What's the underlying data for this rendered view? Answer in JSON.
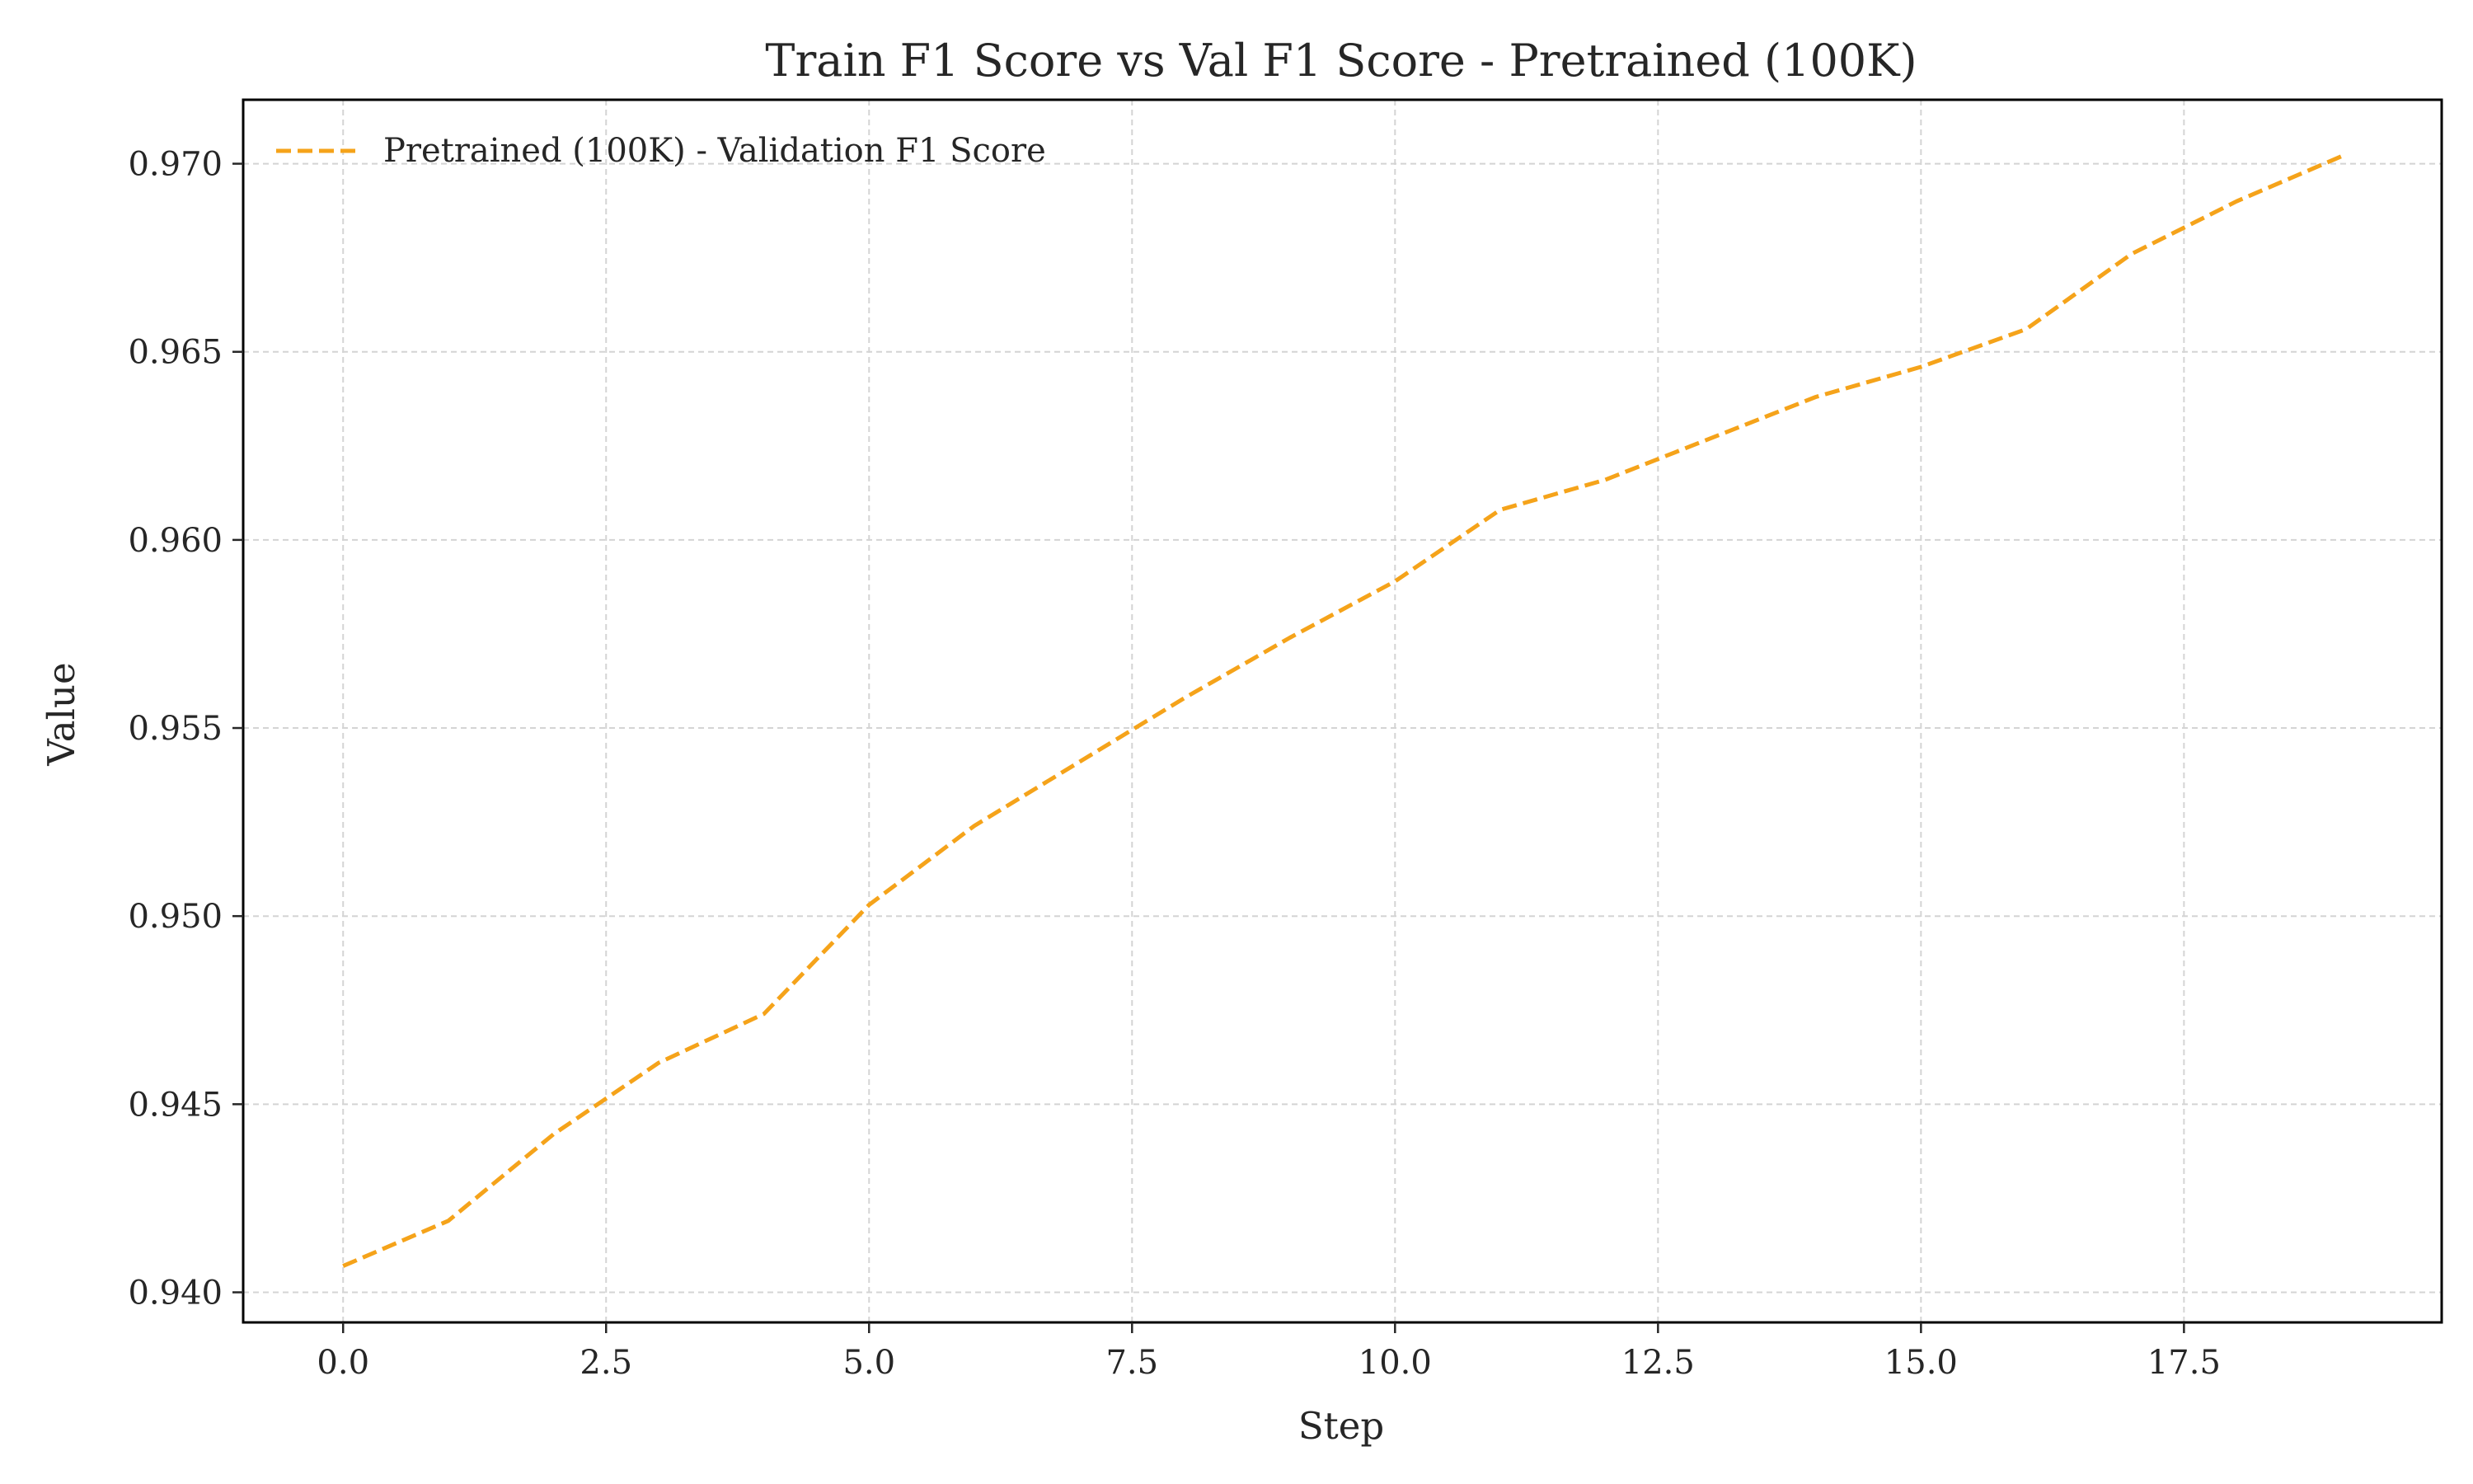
{
  "chart_data": {
    "type": "line",
    "title": "Train F1 Score vs Val F1 Score - Pretrained (100K)",
    "xlabel": "Step",
    "ylabel": "Value",
    "xlim": [
      -0.95,
      19.95
    ],
    "ylim": [
      0.9392,
      0.9717
    ],
    "xticks": [
      0,
      2.5,
      5,
      7.5,
      10,
      12.5,
      15,
      17.5
    ],
    "xtick_labels": [
      "0.0",
      "2.5",
      "5.0",
      "7.5",
      "10.0",
      "12.5",
      "15.0",
      "17.5"
    ],
    "yticks": [
      0.94,
      0.945,
      0.95,
      0.955,
      0.96,
      0.965,
      0.97
    ],
    "ytick_labels": [
      "0.940",
      "0.945",
      "0.950",
      "0.955",
      "0.960",
      "0.965",
      "0.970"
    ],
    "grid": true,
    "legend_position": "top-left",
    "series": [
      {
        "name": "Pretrained (100K) - Validation F1 Score",
        "color": "#f5a31a",
        "line_style": "dashed",
        "x": [
          0,
          1,
          2,
          3,
          4,
          5,
          6,
          7,
          8,
          9,
          10,
          11,
          12,
          13,
          14,
          15,
          16,
          17,
          18,
          19
        ],
        "y": [
          0.9407,
          0.9419,
          0.9442,
          0.9461,
          0.9474,
          0.9503,
          0.9524,
          0.9541,
          0.9558,
          0.9574,
          0.9589,
          0.9608,
          0.9616,
          0.9627,
          0.9638,
          0.9646,
          0.9656,
          0.9676,
          0.969,
          0.9702
        ]
      }
    ]
  }
}
